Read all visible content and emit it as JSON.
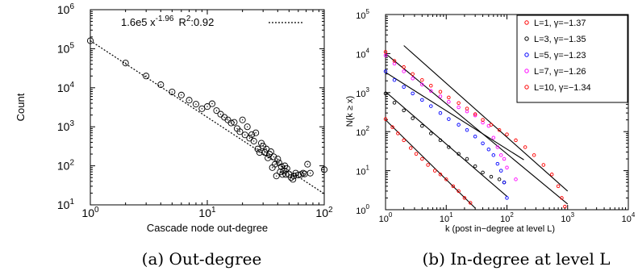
{
  "chart_data": [
    {
      "id": "left",
      "type": "scatter",
      "xscale": "log",
      "yscale": "log",
      "xlim": [
        1,
        100
      ],
      "ylim": [
        10,
        1000000
      ],
      "xlabel": "Cascade node out-degree",
      "ylabel": "Count",
      "xticks": [
        {
          "v": 1,
          "b": "10",
          "e": "0"
        },
        {
          "v": 10,
          "b": "10",
          "e": "1"
        },
        {
          "v": 100,
          "b": "10",
          "e": "2"
        }
      ],
      "yticks": [
        {
          "v": 10,
          "b": "10",
          "e": "1"
        },
        {
          "v": 100,
          "b": "10",
          "e": "2"
        },
        {
          "v": 1000,
          "b": "10",
          "e": "3"
        },
        {
          "v": 10000,
          "b": "10",
          "e": "4"
        },
        {
          "v": 100000,
          "b": "10",
          "e": "5"
        },
        {
          "v": 1000000,
          "b": "10",
          "e": "6"
        }
      ],
      "fit_legend": {
        "coef": "1.6e5 x",
        "exp": "-1.96",
        "r2_label": "R",
        "r2_exp": "2",
        "r2_value": ":0.92"
      },
      "fit": {
        "a": 160000,
        "b": -1.96
      },
      "points": [
        [
          1,
          160000
        ],
        [
          2,
          43000
        ],
        [
          3,
          20000
        ],
        [
          4,
          12000
        ],
        [
          5,
          7800
        ],
        [
          6,
          6500
        ],
        [
          7,
          4800
        ],
        [
          8,
          3800
        ],
        [
          9,
          2900
        ],
        [
          10,
          3300
        ],
        [
          11,
          3900
        ],
        [
          12,
          2600
        ],
        [
          13,
          2100
        ],
        [
          14,
          1750
        ],
        [
          15,
          1500
        ],
        [
          16,
          1250
        ],
        [
          17,
          1300
        ],
        [
          18,
          900
        ],
        [
          19,
          750
        ],
        [
          20,
          1500
        ],
        [
          21,
          620
        ],
        [
          22,
          1000
        ],
        [
          23,
          510
        ],
        [
          24,
          630
        ],
        [
          25,
          430
        ],
        [
          26,
          700
        ],
        [
          27,
          270
        ],
        [
          28,
          220
        ],
        [
          29,
          380
        ],
        [
          30,
          320
        ],
        [
          31,
          220
        ],
        [
          32,
          270
        ],
        [
          33,
          160
        ],
        [
          34,
          200
        ],
        [
          35,
          230
        ],
        [
          36,
          90
        ],
        [
          37,
          170
        ],
        [
          38,
          110
        ],
        [
          39,
          55
        ],
        [
          40,
          150
        ],
        [
          41,
          120
        ],
        [
          42,
          70
        ],
        [
          43,
          95
        ],
        [
          44,
          60
        ],
        [
          45,
          75
        ],
        [
          46,
          100
        ],
        [
          47,
          60
        ],
        [
          48,
          85
        ],
        [
          50,
          60
        ],
        [
          52,
          50
        ],
        [
          54,
          45
        ],
        [
          55,
          55
        ],
        [
          57,
          65
        ],
        [
          60,
          58
        ],
        [
          63,
          60
        ],
        [
          66,
          65
        ],
        [
          68,
          62
        ],
        [
          72,
          110
        ],
        [
          76,
          65
        ],
        [
          100,
          80
        ]
      ]
    },
    {
      "id": "right",
      "type": "scatter",
      "xscale": "log",
      "yscale": "log",
      "xlim": [
        1,
        10000
      ],
      "ylim": [
        1,
        100000
      ],
      "xlabel": "k (post in−degree at level L)",
      "ylabel": "N(k ≥ x)",
      "xticks": [
        {
          "v": 1,
          "b": "10",
          "e": "0"
        },
        {
          "v": 10,
          "b": "10",
          "e": "1"
        },
        {
          "v": 100,
          "b": "10",
          "e": "2"
        },
        {
          "v": 1000,
          "b": "10",
          "e": "3"
        },
        {
          "v": 10000,
          "b": "10",
          "e": "4"
        }
      ],
      "yticks": [
        {
          "v": 1,
          "b": "10",
          "e": "0"
        },
        {
          "v": 10,
          "b": "10",
          "e": "1"
        },
        {
          "v": 100,
          "b": "10",
          "e": "2"
        },
        {
          "v": 1000,
          "b": "10",
          "e": "3"
        },
        {
          "v": 10000,
          "b": "10",
          "e": "4"
        },
        {
          "v": 100000,
          "b": "10",
          "e": "5"
        }
      ],
      "legend_position": "top-right",
      "series": [
        {
          "name": "L=1, γ=−1.37",
          "color": "#ff0000",
          "points": [
            [
              1,
              210
            ],
            [
              1.3,
              130
            ],
            [
              1.6,
              90
            ],
            [
              2,
              60
            ],
            [
              2.6,
              38
            ],
            [
              3.2,
              27
            ],
            [
              4,
              20
            ],
            [
              5,
              14
            ],
            [
              6.5,
              10
            ],
            [
              8,
              8
            ],
            [
              10,
              6
            ],
            [
              13,
              4
            ],
            [
              16,
              3
            ],
            [
              20,
              2
            ],
            [
              25,
              1.5
            ]
          ],
          "fit": [
            [
              1,
              200
            ],
            [
              30,
              1.1
            ]
          ]
        },
        {
          "name": "L=3, γ=−1.35",
          "color": "#000000",
          "points": [
            [
              1,
              950
            ],
            [
              1.4,
              550
            ],
            [
              2,
              350
            ],
            [
              2.8,
              220
            ],
            [
              4,
              140
            ],
            [
              5.6,
              90
            ],
            [
              8,
              60
            ],
            [
              11,
              40
            ],
            [
              16,
              27
            ],
            [
              22,
              20
            ],
            [
              30,
              13
            ],
            [
              40,
              9
            ],
            [
              55,
              7
            ],
            [
              75,
              6
            ],
            [
              90,
              5
            ]
          ],
          "fit": [
            [
              1,
              1050
            ],
            [
              100,
              2.2
            ]
          ]
        },
        {
          "name": "L=5, γ=−1.23",
          "color": "#0000ff",
          "points": [
            [
              1,
              3500
            ],
            [
              1.4,
              2100
            ],
            [
              2,
              1400
            ],
            [
              2.8,
              950
            ],
            [
              4,
              650
            ],
            [
              5.6,
              450
            ],
            [
              8,
              300
            ],
            [
              11,
              210
            ],
            [
              16,
              150
            ],
            [
              22,
              110
            ],
            [
              30,
              75
            ],
            [
              40,
              50
            ],
            [
              50,
              35
            ],
            [
              60,
              25
            ],
            [
              70,
              15
            ],
            [
              80,
              10
            ],
            [
              90,
              5
            ],
            [
              100,
              2
            ]
          ],
          "fit": [
            [
              1,
              3300
            ],
            [
              190,
              19
            ]
          ]
        },
        {
          "name": "L=7, γ=−1.26",
          "color": "#ff00ff",
          "points": [
            [
              1,
              9000
            ],
            [
              1.4,
              5500
            ],
            [
              2,
              3500
            ],
            [
              2.8,
              2300
            ],
            [
              4,
              1600
            ],
            [
              5.6,
              1100
            ],
            [
              8,
              800
            ],
            [
              11,
              580
            ],
            [
              16,
              420
            ],
            [
              22,
              330
            ],
            [
              30,
              260
            ],
            [
              40,
              170
            ],
            [
              50,
              140
            ],
            [
              60,
              70
            ],
            [
              70,
              40
            ],
            [
              80,
              25
            ],
            [
              90,
              20
            ],
            [
              100,
              12
            ],
            [
              140,
              6
            ]
          ],
          "fit": [
            [
              1,
              10000
            ],
            [
              1000,
              1.4
            ]
          ]
        },
        {
          "name": "L=10, γ=−1.34",
          "color": "#ff0000",
          "points": [
            [
              1,
              11000
            ],
            [
              1.4,
              6500
            ],
            [
              2,
              4500
            ],
            [
              2.8,
              3000
            ],
            [
              4,
              2100
            ],
            [
              5.6,
              1500
            ],
            [
              8,
              1050
            ],
            [
              11,
              750
            ],
            [
              16,
              540
            ],
            [
              22,
              390
            ],
            [
              30,
              280
            ],
            [
              40,
              200
            ],
            [
              55,
              150
            ],
            [
              75,
              110
            ],
            [
              100,
              85
            ],
            [
              140,
              60
            ],
            [
              200,
              40
            ],
            [
              280,
              25
            ],
            [
              400,
              14
            ],
            [
              550,
              8
            ],
            [
              700,
              4
            ],
            [
              800,
              2
            ],
            [
              900,
              1.2
            ]
          ],
          "fit": [
            [
              2,
              16000
            ],
            [
              1000,
              3
            ]
          ]
        }
      ]
    }
  ],
  "captions": [
    "(a) Out-degree",
    "(b) In-degree at level L"
  ]
}
